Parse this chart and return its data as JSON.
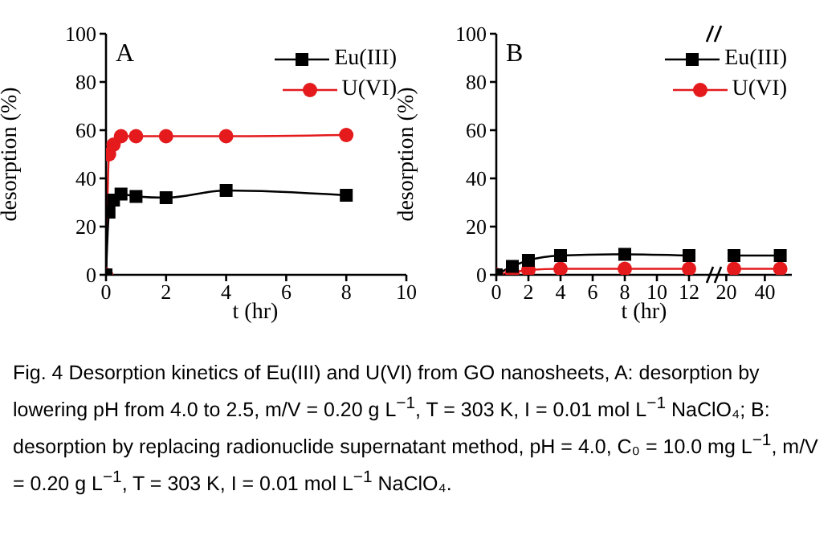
{
  "chart_data": [
    {
      "type": "line",
      "xlabel": "t (hr)",
      "ylabel": "desorption (%)",
      "xlim": [
        0,
        10
      ],
      "xticks": [
        0,
        2,
        4,
        6,
        8,
        10
      ],
      "ylim": [
        0,
        100
      ],
      "yticks": [
        0,
        20,
        40,
        60,
        80,
        100
      ],
      "legend": "top right",
      "grid": false,
      "annotations": [
        "A",
        "Fig. 4  Desorption kinetics of Eu(III) and U(VI) from GO nanosheets, A: desorption by lowering pH from 4.0 to 2.5, m/V = 0.20 g L$^{−1}$, T = 303 K, I = 0.01 mol L$^{−1}$ NaClO₄; B: desorption by replacing radionuclide supernatant method, pH = 4.0, C₀ = 10.0 mg L$^{−1}$, m/V = 0.20 g L$^{−1}$, T = 303 K, I = 0.01 mol L$^{−1}$ NaClO₄."
      ],
      "series": [
        {
          "name": "Eu(III)",
          "color": "#000000",
          "marker": "square",
          "x": [
            0,
            0.1,
            0.25,
            0.5,
            1,
            2,
            4,
            8
          ],
          "values": [
            0,
            26,
            31,
            33.5,
            32.5,
            32,
            35,
            33
          ]
        },
        {
          "name": "U(VI)",
          "color": "#e41a1c",
          "marker": "circle",
          "x": [
            0,
            0.1,
            0.25,
            0.5,
            1,
            2,
            4,
            8
          ],
          "values": [
            0,
            50,
            54,
            57.5,
            57.5,
            57.5,
            57.5,
            58
          ]
        }
      ]
    },
    {
      "type": "line",
      "xlabel": "t (hr)",
      "ylabel": "desorption (%)",
      "xlim": [
        0,
        13.6
      ],
      "xticks": [
        0,
        2,
        4,
        6,
        8,
        10,
        12
      ],
      "ylim": [
        0,
        100
      ],
      "yticks": [
        0,
        20,
        40,
        60,
        80,
        100
      ],
      "legend": "top right",
      "grid": false,
      "annotations": [
        "B"
      ],
      "series": [
        {
          "name": "Eu(III)",
          "color": "#000000",
          "marker": "square",
          "x": [
            0,
            1,
            2,
            4,
            8,
            12
          ],
          "values": [
            0,
            3.5,
            6,
            8,
            8.5,
            8
          ]
        },
        {
          "name": "U(VI)",
          "color": "#e41a1c",
          "marker": "circle",
          "x": [
            0,
            1,
            2,
            4,
            8,
            12
          ],
          "values": [
            0,
            1,
            2,
            2.5,
            2.5,
            2.5
          ]
        }
      ]
    },
    {
      "type": "line",
      "xlim": [
        14,
        54
      ],
      "xticks": [
        20,
        40
      ],
      "ylim": [
        0,
        100
      ],
      "tick_labels": "x",
      "grid": false,
      "series": [
        {
          "color": "#000000",
          "marker": "square",
          "x": [
            24,
            48
          ],
          "values": [
            8,
            8
          ]
        },
        {
          "color": "#e41a1c",
          "marker": "circle",
          "x": [
            24,
            48
          ],
          "values": [
            2.5,
            2.5
          ]
        }
      ]
    }
  ]
}
